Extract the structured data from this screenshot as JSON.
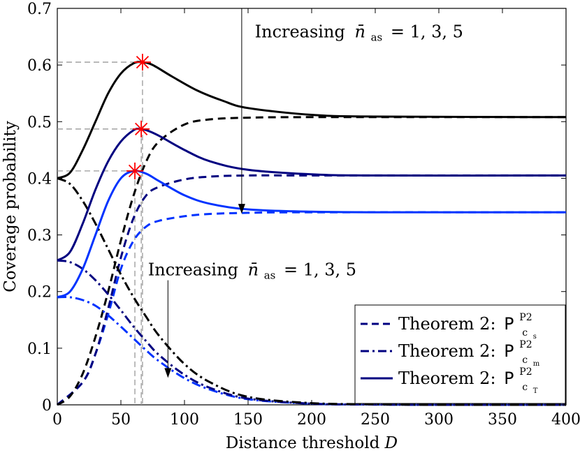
{
  "chart_data": {
    "type": "line",
    "title": "",
    "xlabel_prefix": "Distance threshold",
    "xlabel_var": "D",
    "ylabel": "Coverage probability",
    "xlim": [
      0,
      400
    ],
    "ylim": [
      0,
      0.7
    ],
    "xticks": [
      0,
      50,
      100,
      150,
      200,
      250,
      300,
      350,
      400
    ],
    "yticks": [
      0,
      0.1,
      0.2,
      0.3,
      0.4,
      0.5,
      0.6,
      0.7
    ],
    "xtick_labels": [
      "0",
      "50",
      "100",
      "150",
      "200",
      "250",
      "300",
      "350",
      "400"
    ],
    "ytick_labels": [
      "0",
      "0.1",
      "0.2",
      "0.3",
      "0.4",
      "0.5",
      "0.6",
      "0.7"
    ],
    "grid": false,
    "colors": {
      "n1": "#0033ff",
      "n3": "#000080",
      "n5": "#000000",
      "marker": "#ff0000",
      "ref": "#999999"
    },
    "series": [
      {
        "name": "P_cs n_as=1",
        "style": "dashed",
        "color_key": "n1",
        "x": [
          0,
          20,
          30,
          40,
          50,
          60,
          70,
          80,
          100,
          120,
          150,
          200,
          400
        ],
        "y": [
          0,
          0.04,
          0.09,
          0.16,
          0.24,
          0.29,
          0.315,
          0.325,
          0.333,
          0.337,
          0.339,
          0.34,
          0.34
        ]
      },
      {
        "name": "P_cs n_as=3",
        "style": "dashed",
        "color_key": "n3",
        "x": [
          0,
          20,
          30,
          40,
          50,
          60,
          70,
          80,
          100,
          120,
          150,
          200,
          400
        ],
        "y": [
          0,
          0.04,
          0.09,
          0.17,
          0.26,
          0.33,
          0.37,
          0.385,
          0.398,
          0.403,
          0.405,
          0.405,
          0.405
        ]
      },
      {
        "name": "P_cs n_as=5",
        "style": "dashed",
        "color_key": "n5",
        "x": [
          0,
          10,
          20,
          30,
          40,
          50,
          60,
          70,
          80,
          100,
          120,
          150,
          200,
          400
        ],
        "y": [
          0,
          0.015,
          0.055,
          0.12,
          0.2,
          0.29,
          0.37,
          0.43,
          0.465,
          0.495,
          0.504,
          0.507,
          0.508,
          0.508
        ]
      },
      {
        "name": "P_cm n_as=1",
        "style": "dashdot",
        "color_key": "n1",
        "x": [
          0,
          10,
          20,
          30,
          40,
          50,
          60,
          70,
          80,
          100,
          120,
          150,
          200,
          250,
          300,
          400
        ],
        "y": [
          0.19,
          0.19,
          0.185,
          0.175,
          0.158,
          0.138,
          0.117,
          0.096,
          0.077,
          0.047,
          0.027,
          0.01,
          0.002,
          0.0005,
          0,
          0
        ]
      },
      {
        "name": "P_cm n_as=3",
        "style": "dashdot",
        "color_key": "n3",
        "x": [
          0,
          10,
          20,
          30,
          40,
          50,
          60,
          70,
          80,
          100,
          120,
          150,
          200,
          250,
          300,
          400
        ],
        "y": [
          0.255,
          0.252,
          0.24,
          0.22,
          0.195,
          0.167,
          0.138,
          0.112,
          0.088,
          0.053,
          0.03,
          0.011,
          0.002,
          0.0005,
          0,
          0
        ]
      },
      {
        "name": "P_cm n_as=5",
        "style": "dashdot",
        "color_key": "n5",
        "x": [
          0,
          10,
          20,
          30,
          40,
          50,
          60,
          70,
          80,
          100,
          120,
          150,
          200,
          250,
          300,
          400
        ],
        "y": [
          0.4,
          0.39,
          0.36,
          0.32,
          0.275,
          0.23,
          0.19,
          0.155,
          0.122,
          0.072,
          0.04,
          0.014,
          0.003,
          0.001,
          0,
          0
        ]
      },
      {
        "name": "P_cT n_as=1",
        "style": "solid",
        "color_key": "n1",
        "x": [
          0,
          10,
          20,
          30,
          40,
          50,
          60,
          70,
          80,
          100,
          120,
          150,
          200,
          250,
          400
        ],
        "y": [
          0.19,
          0.2,
          0.24,
          0.3,
          0.36,
          0.4,
          0.413,
          0.408,
          0.395,
          0.37,
          0.355,
          0.345,
          0.341,
          0.34,
          0.34
        ]
      },
      {
        "name": "P_cT n_as=3",
        "style": "solid",
        "color_key": "n3",
        "x": [
          0,
          10,
          20,
          30,
          40,
          50,
          60,
          65,
          70,
          80,
          100,
          120,
          150,
          200,
          250,
          400
        ],
        "y": [
          0.255,
          0.27,
          0.32,
          0.38,
          0.43,
          0.465,
          0.485,
          0.487,
          0.485,
          0.475,
          0.45,
          0.43,
          0.415,
          0.407,
          0.405,
          0.405
        ]
      },
      {
        "name": "P_cT n_as=5",
        "style": "solid",
        "color_key": "n5",
        "x": [
          0,
          10,
          20,
          30,
          40,
          50,
          60,
          67,
          75,
          90,
          110,
          130,
          150,
          200,
          250,
          400
        ],
        "y": [
          0.4,
          0.41,
          0.45,
          0.5,
          0.55,
          0.585,
          0.603,
          0.605,
          0.6,
          0.58,
          0.555,
          0.537,
          0.524,
          0.512,
          0.509,
          0.508
        ]
      }
    ],
    "optimum_markers": [
      {
        "x": 61,
        "y": 0.413
      },
      {
        "x": 66,
        "y": 0.487
      },
      {
        "x": 67,
        "y": 0.605
      }
    ],
    "annotations": [
      {
        "text_prefix": "Increasing",
        "var": "n̄",
        "sub": "as",
        "text_suffix": "= 1, 3, 5",
        "anchor_x": 152,
        "anchor_y": 0.66
      },
      {
        "text_prefix": "Increasing",
        "var": "n̄",
        "sub": "as",
        "text_suffix": "= 1, 3, 5",
        "anchor_x": 68,
        "anchor_y": 0.24
      }
    ],
    "arrows": [
      {
        "x": 145,
        "y_from": 0.7,
        "y_to": 0.34
      },
      {
        "x": 87,
        "y_from": 0.22,
        "y_to": 0.05
      }
    ],
    "legend": {
      "position": "bottom-right",
      "entries": [
        {
          "prefix": "Theorem 2:",
          "sym": "P",
          "sup": "P2",
          "sub_main": "c",
          "sub_sub": "s",
          "style": "dashed"
        },
        {
          "prefix": "Theorem 2:",
          "sym": "P",
          "sup": "P2",
          "sub_main": "c",
          "sub_sub": "m",
          "style": "dashdot"
        },
        {
          "prefix": "Theorem 2:",
          "sym": "P",
          "sup": "P2",
          "sub_main": "c",
          "sub_sub": "T",
          "style": "solid"
        }
      ]
    }
  }
}
